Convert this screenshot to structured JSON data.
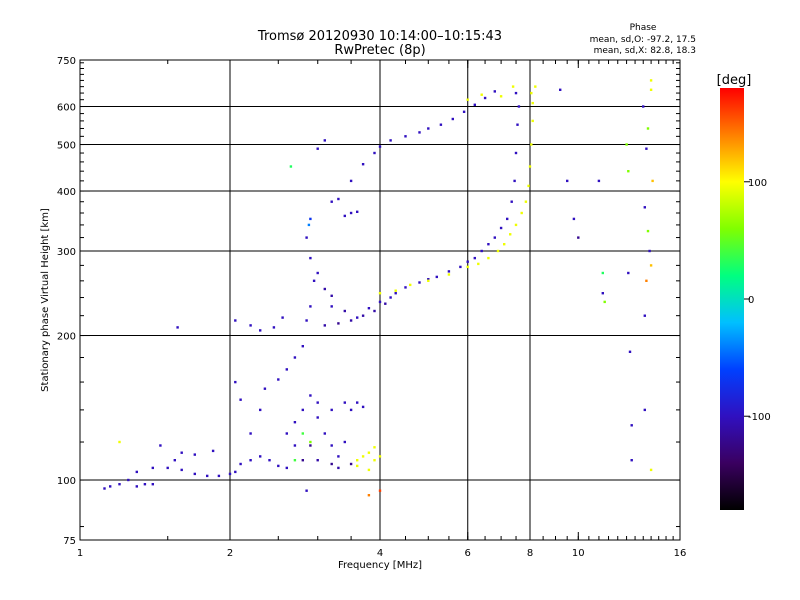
{
  "chart_data": {
    "type": "scatter",
    "title_line1": "Tromsø 20120930 10:14:00–10:15:43",
    "title_line2": "RwPretec (8p)",
    "phase_box": {
      "heading": "Phase",
      "line_o": "mean, sd,O: -97.2, 17.5",
      "line_x": "mean, sd,X:  82.8, 18.3"
    },
    "xlabel": "Frequency [MHz]",
    "ylabel": "Stationary phase Virtual Height [km]",
    "x_scale": "log",
    "y_scale": "log",
    "xlim": [
      1,
      16
    ],
    "ylim": [
      75,
      750
    ],
    "x_ticks": [
      {
        "value": 1,
        "label": "1"
      },
      {
        "value": 2,
        "label": "2"
      },
      {
        "value": 4,
        "label": "4"
      },
      {
        "value": 6,
        "label": "6"
      },
      {
        "value": 8,
        "label": "8"
      },
      {
        "value": 10,
        "label": "10"
      },
      {
        "value": 16,
        "label": "16"
      }
    ],
    "x_grid": [
      2,
      4,
      6,
      8
    ],
    "y_ticks": [
      {
        "value": 75,
        "label": "75"
      },
      {
        "value": 100,
        "label": "100"
      },
      {
        "value": 200,
        "label": "200"
      },
      {
        "value": 300,
        "label": "300"
      },
      {
        "value": 400,
        "label": "400"
      },
      {
        "value": 500,
        "label": "500"
      },
      {
        "value": 600,
        "label": "600"
      },
      {
        "value": 750,
        "label": "750"
      }
    ],
    "y_grid": [
      100,
      200,
      300,
      400,
      500,
      600
    ],
    "colorbar": {
      "label": "[deg]",
      "range": [
        -180,
        180
      ],
      "ticks": [
        {
          "value": 100,
          "label": "100"
        },
        {
          "value": 0,
          "label": "0"
        },
        {
          "value": -100,
          "label": "-100"
        }
      ],
      "colors": [
        "#000000",
        "#3a0060",
        "#3010c0",
        "#0040ff",
        "#00c0ff",
        "#00ff80",
        "#80ff00",
        "#ffff00",
        "#ff8000",
        "#ff0000"
      ]
    },
    "series": [
      {
        "points": [
          [
            1.12,
            96,
            -100
          ],
          [
            1.15,
            97,
            -100
          ],
          [
            1.2,
            98,
            -100
          ],
          [
            1.25,
            100,
            -100
          ],
          [
            1.3,
            97,
            -100
          ],
          [
            1.35,
            98,
            -100
          ],
          [
            1.4,
            98,
            -100
          ],
          [
            1.3,
            104,
            -100
          ],
          [
            1.4,
            106,
            -100
          ],
          [
            1.5,
            106,
            -100
          ],
          [
            1.6,
            105,
            -100
          ],
          [
            1.7,
            103,
            -100
          ],
          [
            1.8,
            102,
            -100
          ],
          [
            1.9,
            102,
            -100
          ],
          [
            2.0,
            103,
            -100
          ],
          [
            1.55,
            110,
            -100
          ],
          [
            1.7,
            113,
            -100
          ],
          [
            1.85,
            115,
            -100
          ],
          [
            1.6,
            114,
            -100
          ],
          [
            1.45,
            118,
            -100
          ],
          [
            2.05,
            104,
            -100
          ],
          [
            2.1,
            108,
            -100
          ],
          [
            2.2,
            110,
            -100
          ],
          [
            2.3,
            112,
            -100
          ],
          [
            2.4,
            110,
            -100
          ],
          [
            2.5,
            107,
            -100
          ],
          [
            2.6,
            106,
            -100
          ],
          [
            2.2,
            125,
            -100
          ],
          [
            2.3,
            140,
            -100
          ],
          [
            2.35,
            155,
            -100
          ],
          [
            2.5,
            162,
            -100
          ],
          [
            2.6,
            170,
            -100
          ],
          [
            2.7,
            180,
            -100
          ],
          [
            2.8,
            190,
            -100
          ],
          [
            2.05,
            160,
            -100
          ],
          [
            2.1,
            147,
            -100
          ],
          [
            2.6,
            125,
            -100
          ],
          [
            2.7,
            132,
            -100
          ],
          [
            2.8,
            140,
            -100
          ],
          [
            2.9,
            150,
            -100
          ],
          [
            3.0,
            135,
            -100
          ],
          [
            3.1,
            125,
            -100
          ],
          [
            3.2,
            118,
            -100
          ],
          [
            3.3,
            112,
            -100
          ],
          [
            3.4,
            120,
            -100
          ],
          [
            3.0,
            110,
            -110
          ],
          [
            3.2,
            108,
            -120
          ],
          [
            3.3,
            106,
            -110
          ],
          [
            3.5,
            140,
            -100
          ],
          [
            3.5,
            108,
            -120
          ],
          [
            2.9,
            118,
            -120
          ],
          [
            2.8,
            110,
            -120
          ],
          [
            3.6,
            145,
            -100
          ],
          [
            3.7,
            142,
            -100
          ],
          [
            3.4,
            145,
            -100
          ],
          [
            3.2,
            140,
            -100
          ],
          [
            3.0,
            145,
            -100
          ],
          [
            2.7,
            118,
            -100
          ],
          [
            3.6,
            110,
            95
          ],
          [
            3.7,
            112,
            95
          ],
          [
            3.8,
            114,
            95
          ],
          [
            3.9,
            110,
            95
          ],
          [
            4.0,
            112,
            95
          ],
          [
            3.8,
            105,
            95
          ],
          [
            3.6,
            107,
            95
          ],
          [
            3.9,
            117,
            95
          ],
          [
            2.85,
            95,
            -100
          ],
          [
            2.05,
            215,
            -100
          ],
          [
            2.2,
            210,
            -100
          ],
          [
            2.3,
            205,
            -100
          ],
          [
            2.45,
            208,
            -100
          ],
          [
            2.55,
            218,
            -100
          ],
          [
            1.57,
            208,
            -100
          ],
          [
            3.2,
            230,
            -100
          ],
          [
            3.4,
            225,
            -110
          ],
          [
            3.6,
            218,
            -100
          ],
          [
            3.8,
            228,
            -100
          ],
          [
            4.0,
            235,
            -100
          ],
          [
            4.2,
            240,
            -100
          ],
          [
            3.1,
            210,
            -110
          ],
          [
            3.3,
            212,
            -120
          ],
          [
            3.5,
            215,
            -110
          ],
          [
            3.7,
            220,
            -110
          ],
          [
            3.9,
            225,
            -110
          ],
          [
            4.1,
            233,
            -110
          ],
          [
            2.85,
            215,
            -100
          ],
          [
            2.9,
            230,
            -100
          ],
          [
            2.95,
            260,
            -100
          ],
          [
            2.9,
            290,
            -100
          ],
          [
            2.85,
            320,
            -100
          ],
          [
            2.9,
            350,
            -70
          ],
          [
            2.88,
            340,
            -40
          ],
          [
            3.0,
            270,
            -100
          ],
          [
            3.1,
            250,
            -110
          ],
          [
            3.2,
            242,
            -110
          ],
          [
            4.3,
            245,
            -100
          ],
          [
            4.5,
            252,
            -100
          ],
          [
            4.8,
            258,
            -100
          ],
          [
            5.0,
            262,
            -100
          ],
          [
            5.2,
            265,
            -100
          ],
          [
            5.5,
            272,
            -100
          ],
          [
            5.8,
            278,
            -100
          ],
          [
            6.0,
            285,
            -100
          ],
          [
            6.2,
            290,
            -100
          ],
          [
            6.4,
            300,
            -100
          ],
          [
            6.6,
            310,
            -100
          ],
          [
            6.8,
            320,
            -100
          ],
          [
            7.0,
            335,
            -100
          ],
          [
            7.2,
            350,
            -100
          ],
          [
            7.35,
            380,
            -100
          ],
          [
            7.45,
            420,
            -100
          ],
          [
            7.5,
            480,
            -100
          ],
          [
            7.55,
            550,
            -100
          ],
          [
            7.6,
            600,
            -100
          ],
          [
            7.5,
            640,
            -100
          ],
          [
            4.0,
            245,
            95
          ],
          [
            4.3,
            248,
            95
          ],
          [
            4.6,
            255,
            95
          ],
          [
            5.0,
            260,
            95
          ],
          [
            5.5,
            268,
            95
          ],
          [
            6.0,
            278,
            95
          ],
          [
            6.3,
            282,
            95
          ],
          [
            6.6,
            290,
            95
          ],
          [
            6.9,
            300,
            95
          ],
          [
            7.1,
            310,
            95
          ],
          [
            7.3,
            325,
            95
          ],
          [
            7.5,
            340,
            95
          ],
          [
            7.7,
            360,
            95
          ],
          [
            7.85,
            380,
            95
          ],
          [
            7.95,
            410,
            95
          ],
          [
            8.0,
            450,
            95
          ],
          [
            8.05,
            500,
            95
          ],
          [
            8.1,
            560,
            95
          ],
          [
            8.1,
            610,
            95
          ],
          [
            8.05,
            640,
            95
          ],
          [
            3.2,
            380,
            -100
          ],
          [
            3.3,
            385,
            -100
          ],
          [
            3.5,
            420,
            -100
          ],
          [
            3.7,
            455,
            -100
          ],
          [
            3.9,
            480,
            -100
          ],
          [
            4.0,
            495,
            -100
          ],
          [
            4.2,
            510,
            -100
          ],
          [
            4.5,
            520,
            -100
          ],
          [
            4.8,
            530,
            -100
          ],
          [
            5.0,
            540,
            -100
          ],
          [
            5.3,
            550,
            -100
          ],
          [
            5.6,
            565,
            -100
          ],
          [
            5.9,
            585,
            -100
          ],
          [
            6.2,
            605,
            -100
          ],
          [
            6.5,
            625,
            -100
          ],
          [
            6.8,
            645,
            -100
          ],
          [
            3.4,
            355,
            -100
          ],
          [
            3.5,
            360,
            -100
          ],
          [
            3.6,
            362,
            -100
          ],
          [
            2.65,
            450,
            30
          ],
          [
            3.0,
            490,
            -100
          ],
          [
            3.1,
            510,
            -100
          ],
          [
            7.0,
            630,
            95
          ],
          [
            7.4,
            660,
            95
          ],
          [
            6.0,
            620,
            95
          ],
          [
            6.4,
            635,
            95
          ],
          [
            9.2,
            650,
            -100
          ],
          [
            8.2,
            660,
            95
          ],
          [
            11.0,
            420,
            -100
          ],
          [
            11.2,
            270,
            30
          ],
          [
            11.2,
            245,
            -100
          ],
          [
            11.3,
            235,
            60
          ],
          [
            12.5,
            500,
            60
          ],
          [
            12.6,
            270,
            -100
          ],
          [
            12.6,
            440,
            60
          ],
          [
            12.7,
            185,
            -100
          ],
          [
            12.8,
            130,
            -100
          ],
          [
            12.8,
            110,
            -100
          ],
          [
            13.6,
            370,
            -100
          ],
          [
            13.7,
            490,
            -100
          ],
          [
            13.6,
            220,
            -100
          ],
          [
            13.8,
            540,
            60
          ],
          [
            13.8,
            330,
            60
          ],
          [
            13.7,
            260,
            140
          ],
          [
            13.9,
            300,
            -100
          ],
          [
            13.5,
            600,
            -100
          ],
          [
            13.6,
            140,
            -100
          ],
          [
            14.0,
            680,
            95
          ],
          [
            14.0,
            650,
            95
          ],
          [
            14.0,
            105,
            95
          ],
          [
            14.1,
            420,
            120
          ],
          [
            14.0,
            280,
            120
          ],
          [
            10.0,
            320,
            -120
          ],
          [
            9.8,
            350,
            -100
          ],
          [
            9.5,
            420,
            -100
          ],
          [
            3.8,
            93,
            140
          ],
          [
            4.0,
            95,
            160
          ],
          [
            1.2,
            120,
            95
          ],
          [
            2.9,
            120,
            60
          ],
          [
            2.8,
            125,
            40
          ],
          [
            2.7,
            110,
            40
          ]
        ]
      }
    ]
  }
}
